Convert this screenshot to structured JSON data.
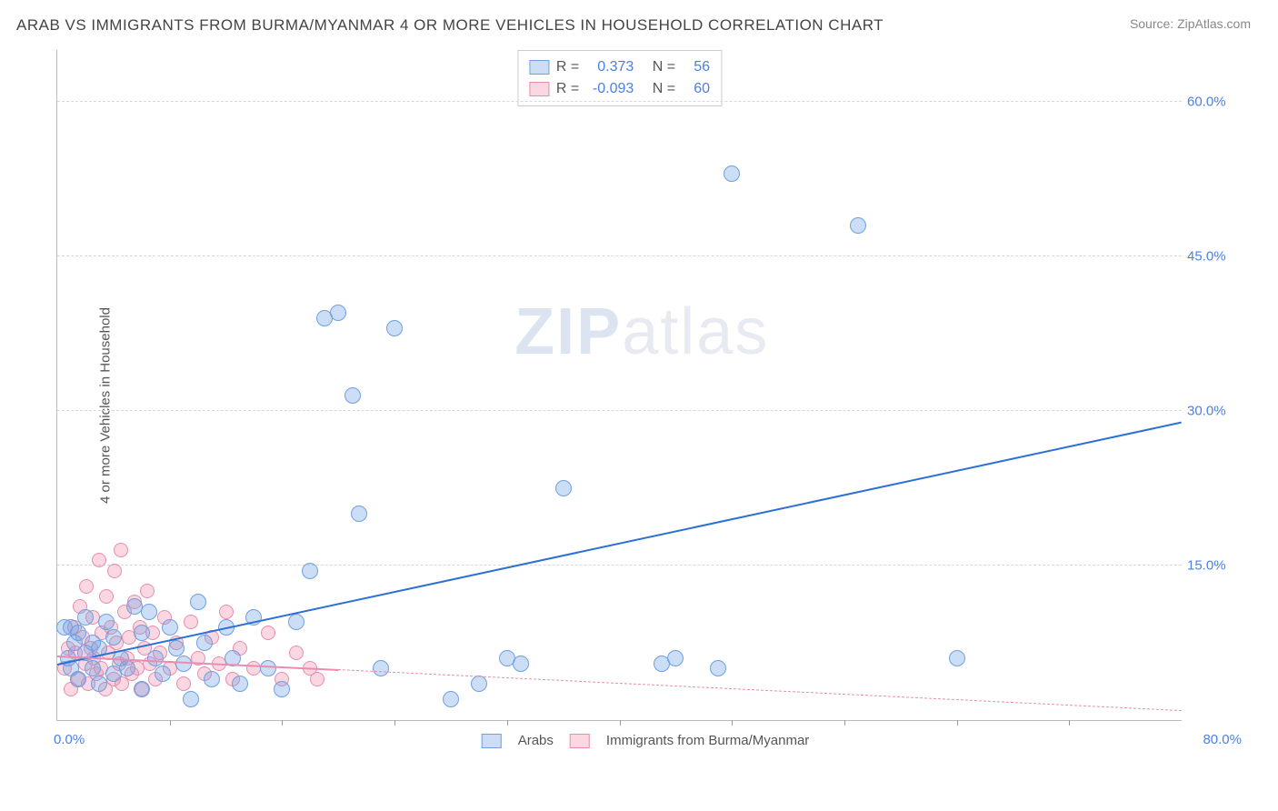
{
  "title": "ARAB VS IMMIGRANTS FROM BURMA/MYANMAR 4 OR MORE VEHICLES IN HOUSEHOLD CORRELATION CHART",
  "source": "Source: ZipAtlas.com",
  "ylabel": "4 or more Vehicles in Household",
  "watermark_a": "ZIP",
  "watermark_b": "atlas",
  "axes": {
    "xlim": [
      0,
      80
    ],
    "ylim": [
      0,
      65
    ],
    "x_tick_start_label": "0.0%",
    "x_tick_end_label": "80.0%",
    "y_ticks": [
      15,
      30,
      45,
      60
    ],
    "y_tick_labels": [
      "15.0%",
      "30.0%",
      "45.0%",
      "60.0%"
    ],
    "x_minor_ticks": [
      8,
      16,
      24,
      32,
      40,
      48,
      56,
      64,
      72
    ],
    "grid_color": "#d8d8d8",
    "axis_color": "#bbbbbb",
    "tick_label_color": "#4a80e8"
  },
  "legend": {
    "series1": {
      "r_label": "R =",
      "r_value": "0.373",
      "n_label": "N =",
      "n_value": "56"
    },
    "series2": {
      "r_label": "R =",
      "r_value": "-0.093",
      "n_label": "N =",
      "n_value": "60"
    }
  },
  "bottom_legend": {
    "series1_label": "Arabs",
    "series2_label": "Immigrants from Burma/Myanmar"
  },
  "series": {
    "arabs": {
      "color_fill": "rgba(110,160,230,0.35)",
      "color_stroke": "#6fa0e0",
      "marker_radius": 9,
      "trend_color": "#2c6fd6",
      "trend_width": 2,
      "trend": {
        "x1": 0,
        "y1": 5.5,
        "x2": 80,
        "y2": 29.0,
        "dashed": false
      },
      "points": [
        [
          0.5,
          9.0
        ],
        [
          0.8,
          6.0
        ],
        [
          1.0,
          5.0
        ],
        [
          1.2,
          7.5
        ],
        [
          1.5,
          4.0
        ],
        [
          1.5,
          8.5
        ],
        [
          2.0,
          6.5
        ],
        [
          2.0,
          10.0
        ],
        [
          2.5,
          5.0
        ],
        [
          3.0,
          7.0
        ],
        [
          3.0,
          3.5
        ],
        [
          3.5,
          9.5
        ],
        [
          4.0,
          4.5
        ],
        [
          4.0,
          8.0
        ],
        [
          4.5,
          6.0
        ],
        [
          5.0,
          5.0
        ],
        [
          5.5,
          11.0
        ],
        [
          6.0,
          3.0
        ],
        [
          6.0,
          8.5
        ],
        [
          6.5,
          10.5
        ],
        [
          7.0,
          6.0
        ],
        [
          7.5,
          4.5
        ],
        [
          8.0,
          9.0
        ],
        [
          8.5,
          7.0
        ],
        [
          9.0,
          5.5
        ],
        [
          9.5,
          2.0
        ],
        [
          10.0,
          11.5
        ],
        [
          10.5,
          7.5
        ],
        [
          11.0,
          4.0
        ],
        [
          12.0,
          9.0
        ],
        [
          12.5,
          6.0
        ],
        [
          13.0,
          3.5
        ],
        [
          14.0,
          10.0
        ],
        [
          15.0,
          5.0
        ],
        [
          16.0,
          3.0
        ],
        [
          17.0,
          9.5
        ],
        [
          18.0,
          14.5
        ],
        [
          19.0,
          39.0
        ],
        [
          20.0,
          39.5
        ],
        [
          21.0,
          31.5
        ],
        [
          21.5,
          20.0
        ],
        [
          23.0,
          5.0
        ],
        [
          24.0,
          38.0
        ],
        [
          28.0,
          2.0
        ],
        [
          30.0,
          3.5
        ],
        [
          32.0,
          6.0
        ],
        [
          33.0,
          5.5
        ],
        [
          36.0,
          22.5
        ],
        [
          43.0,
          5.5
        ],
        [
          44.0,
          6.0
        ],
        [
          47.0,
          5.0
        ],
        [
          48.0,
          53.0
        ],
        [
          57.0,
          48.0
        ],
        [
          64.0,
          6.0
        ],
        [
          1.0,
          9.0
        ],
        [
          2.5,
          7.5
        ]
      ]
    },
    "burma": {
      "color_fill": "rgba(240,140,170,0.35)",
      "color_stroke": "#e88db0",
      "marker_radius": 8,
      "trend_color": "#e88db0",
      "trend_width": 2,
      "trend": {
        "x1": 0,
        "y1": 6.3,
        "x2": 80,
        "y2": 1.0,
        "dashed": true,
        "solid_until_x": 20
      },
      "points": [
        [
          0.5,
          5.0
        ],
        [
          0.8,
          7.0
        ],
        [
          1.0,
          3.0
        ],
        [
          1.2,
          9.0
        ],
        [
          1.3,
          6.5
        ],
        [
          1.5,
          4.0
        ],
        [
          1.6,
          11.0
        ],
        [
          1.8,
          8.0
        ],
        [
          2.0,
          5.5
        ],
        [
          2.1,
          13.0
        ],
        [
          2.2,
          3.5
        ],
        [
          2.4,
          7.0
        ],
        [
          2.5,
          10.0
        ],
        [
          2.6,
          6.0
        ],
        [
          2.8,
          4.5
        ],
        [
          3.0,
          15.5
        ],
        [
          3.1,
          5.0
        ],
        [
          3.2,
          8.5
        ],
        [
          3.4,
          3.0
        ],
        [
          3.5,
          12.0
        ],
        [
          3.6,
          6.5
        ],
        [
          3.8,
          9.0
        ],
        [
          4.0,
          4.0
        ],
        [
          4.1,
          14.5
        ],
        [
          4.2,
          7.5
        ],
        [
          4.4,
          5.5
        ],
        [
          4.5,
          16.5
        ],
        [
          4.6,
          3.5
        ],
        [
          4.8,
          10.5
        ],
        [
          5.0,
          6.0
        ],
        [
          5.1,
          8.0
        ],
        [
          5.3,
          4.5
        ],
        [
          5.5,
          11.5
        ],
        [
          5.7,
          5.0
        ],
        [
          5.9,
          9.0
        ],
        [
          6.0,
          3.0
        ],
        [
          6.2,
          7.0
        ],
        [
          6.4,
          12.5
        ],
        [
          6.6,
          5.5
        ],
        [
          6.8,
          8.5
        ],
        [
          7.0,
          4.0
        ],
        [
          7.3,
          6.5
        ],
        [
          7.6,
          10.0
        ],
        [
          8.0,
          5.0
        ],
        [
          8.5,
          7.5
        ],
        [
          9.0,
          3.5
        ],
        [
          9.5,
          9.5
        ],
        [
          10.0,
          6.0
        ],
        [
          10.5,
          4.5
        ],
        [
          11.0,
          8.0
        ],
        [
          11.5,
          5.5
        ],
        [
          12.0,
          10.5
        ],
        [
          12.5,
          4.0
        ],
        [
          13.0,
          7.0
        ],
        [
          14.0,
          5.0
        ],
        [
          15.0,
          8.5
        ],
        [
          16.0,
          4.0
        ],
        [
          17.0,
          6.5
        ],
        [
          18.0,
          5.0
        ],
        [
          18.5,
          4.0
        ]
      ]
    }
  }
}
